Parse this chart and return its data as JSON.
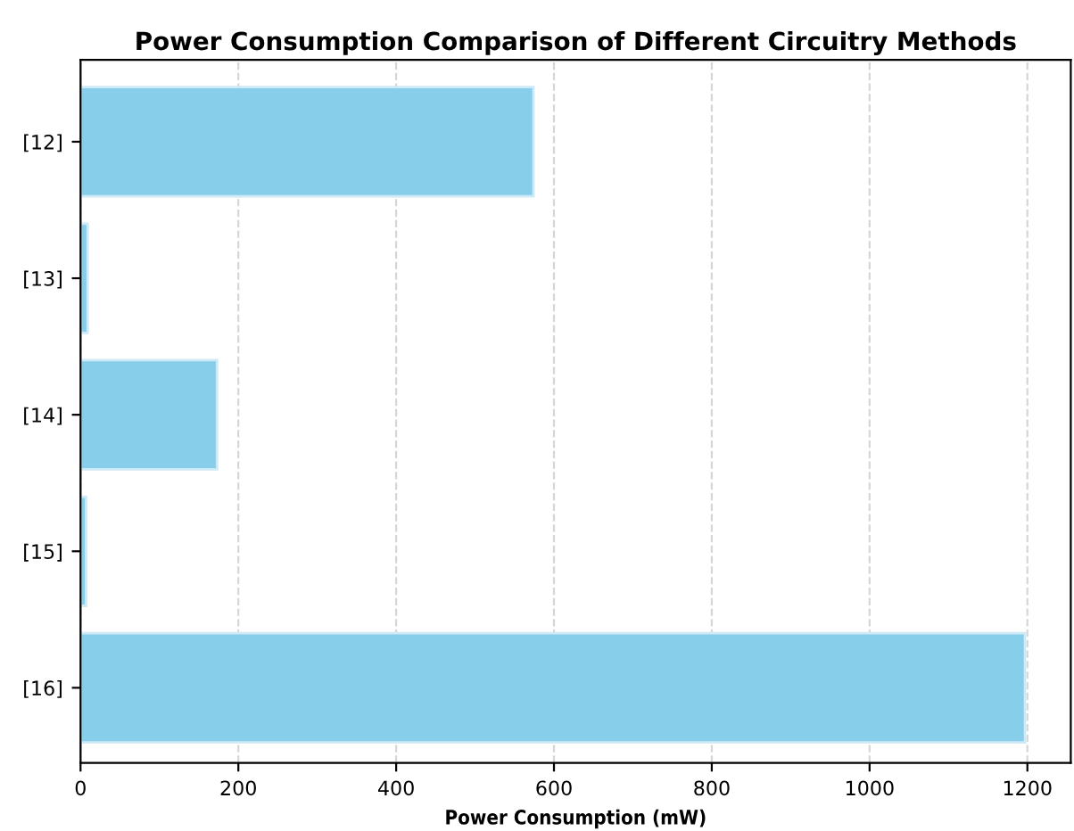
{
  "chart_data": {
    "type": "bar",
    "orientation": "horizontal",
    "title": "Power Consumption Comparison of Different Circuitry Methods",
    "xlabel": "Power Consumption (mW)",
    "categories": [
      "[12]",
      "[13]",
      "[14]",
      "[15]",
      "[16]"
    ],
    "values": [
      574,
      9,
      173,
      7,
      1197
    ],
    "color": "#87ceeb",
    "xlim": [
      0,
      1255
    ],
    "xticks": [
      0,
      200,
      400,
      600,
      800,
      1000,
      1200
    ],
    "grid": "x"
  }
}
